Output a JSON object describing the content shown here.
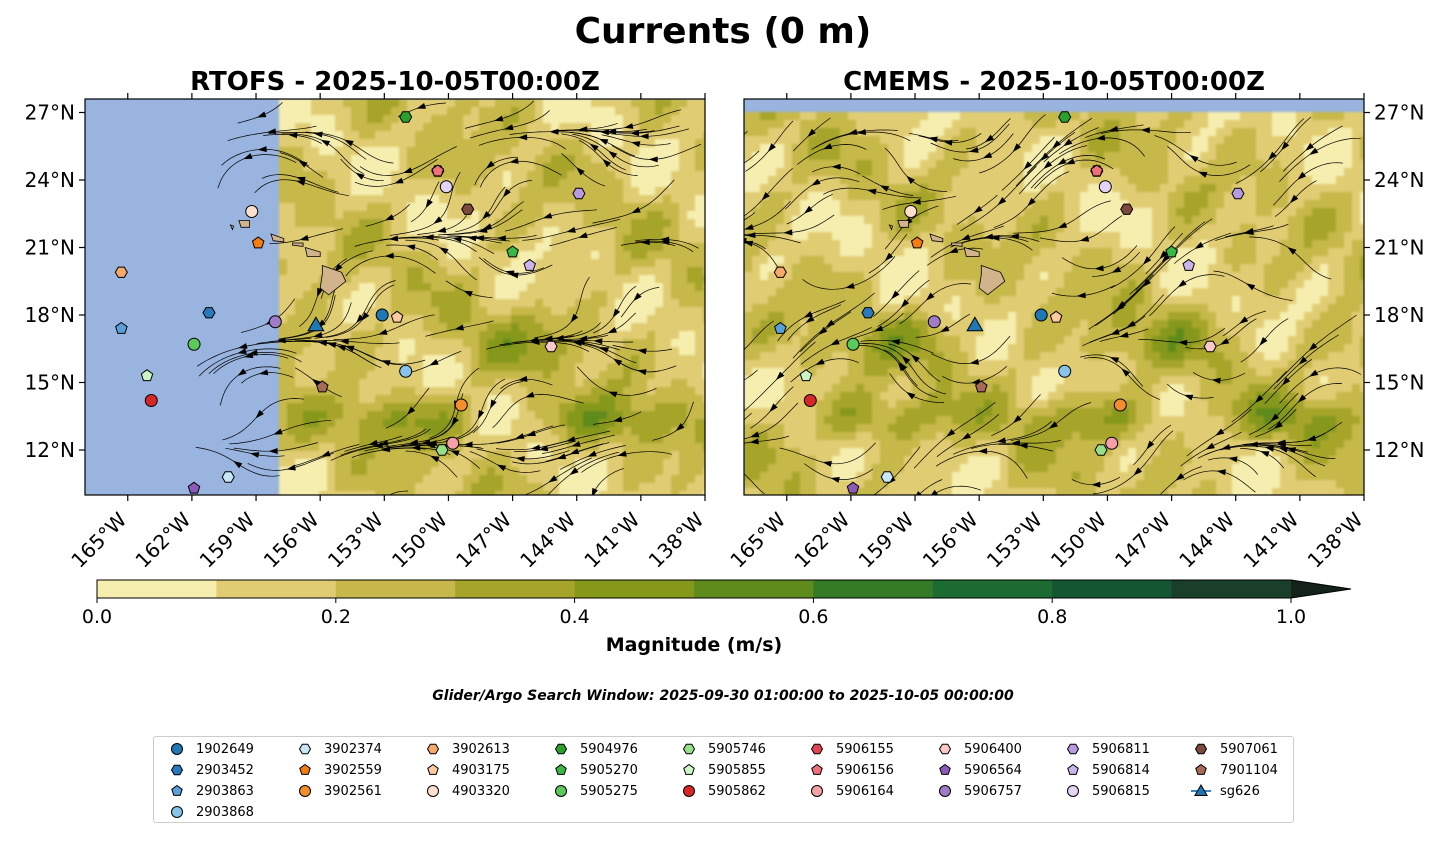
{
  "figure": {
    "suptitle": "Currents (0 m)",
    "search_window": "Glider/Argo Search Window: 2025-09-30 01:00:00 to 2025-10-05 00:00:00"
  },
  "chart_data": {
    "type": "map-contour",
    "panels": [
      {
        "title": "RTOFS - 2025-10-05T00:00Z",
        "lon_range": [
          -167,
          -138
        ],
        "lat_range": [
          10,
          27.6
        ],
        "ytick_side": "left"
      },
      {
        "title": "CMEMS - 2025-10-05T00:00Z",
        "lon_range": [
          -167,
          -138
        ],
        "lat_range": [
          10,
          27.6
        ],
        "ytick_side": "right"
      }
    ],
    "xticks": [
      -165,
      -162,
      -159,
      -156,
      -153,
      -150,
      -147,
      -144,
      -141,
      -138
    ],
    "xtick_labels": [
      "165°W",
      "162°W",
      "159°W",
      "156°W",
      "153°W",
      "150°W",
      "147°W",
      "144°W",
      "141°W",
      "138°W"
    ],
    "yticks": [
      12,
      15,
      18,
      21,
      24,
      27
    ],
    "ytick_labels": [
      "12°N",
      "15°N",
      "18°N",
      "21°N",
      "24°N",
      "27°N"
    ],
    "colorbar": {
      "label": "Magnitude (m/s)",
      "levels": [
        0.0,
        0.1,
        0.2,
        0.3,
        0.4,
        0.5,
        0.6,
        0.7,
        0.8,
        0.9,
        1.0
      ],
      "colors": [
        "#f6eeaf",
        "#e0cc72",
        "#c6b84a",
        "#a6a52a",
        "#86981a",
        "#5f8a1c",
        "#357a25",
        "#1c6b32",
        "#145632",
        "#193f2a"
      ],
      "extend_color": "#15221a",
      "tick_values": [
        0.0,
        0.2,
        0.4,
        0.6,
        0.8,
        1.0
      ],
      "tick_labels": [
        "0.0",
        "0.2",
        "0.4",
        "0.6",
        "0.8",
        "1.0"
      ]
    },
    "platforms": [
      {
        "id": "1902649",
        "marker": "circle",
        "color": "#1f77b4",
        "rtofs": [
          -153.1,
          18.0
        ],
        "cmems": [
          -153.1,
          18.0
        ]
      },
      {
        "id": "2903452",
        "marker": "hexagon",
        "color": "#2a79bd",
        "rtofs": [
          -161.2,
          18.1
        ],
        "cmems": [
          -161.2,
          18.1
        ]
      },
      {
        "id": "2903863",
        "marker": "pentagon",
        "color": "#5aa0d8",
        "rtofs": [
          -165.3,
          17.4
        ],
        "cmems": [
          -165.3,
          17.4
        ]
      },
      {
        "id": "2903868",
        "marker": "circle",
        "color": "#87c3ea",
        "rtofs": [
          -152.0,
          15.5
        ],
        "cmems": [
          -152.0,
          15.5
        ]
      },
      {
        "id": "3902374",
        "marker": "hexagon",
        "color": "#c8e6f5",
        "rtofs": [
          -160.3,
          10.8
        ],
        "cmems": [
          -160.3,
          10.8
        ]
      },
      {
        "id": "3902559",
        "marker": "pentagon",
        "color": "#f57c10",
        "rtofs": [
          -158.9,
          21.2
        ],
        "cmems": [
          -158.9,
          21.2
        ]
      },
      {
        "id": "3902561",
        "marker": "circle",
        "color": "#f28e2b",
        "rtofs": [
          -149.4,
          14.0
        ],
        "cmems": [
          -149.4,
          14.0
        ]
      },
      {
        "id": "3902613",
        "marker": "hexagon",
        "color": "#f6a968",
        "rtofs": [
          -165.3,
          19.9
        ],
        "cmems": [
          -165.3,
          19.9
        ]
      },
      {
        "id": "4903175",
        "marker": "pentagon",
        "color": "#fcc9a0",
        "rtofs": [
          -152.4,
          17.9
        ],
        "cmems": [
          -152.4,
          17.9
        ]
      },
      {
        "id": "4903320",
        "marker": "circle",
        "color": "#fde0cc",
        "rtofs": [
          -159.2,
          22.6
        ],
        "cmems": [
          -159.2,
          22.6
        ]
      },
      {
        "id": "5904976",
        "marker": "hexagon",
        "color": "#2ca02c",
        "rtofs": [
          -152.0,
          26.8
        ],
        "cmems": [
          -152.0,
          26.8
        ]
      },
      {
        "id": "5905270",
        "marker": "pentagon",
        "color": "#39b845",
        "rtofs": [
          -147.0,
          20.8
        ],
        "cmems": [
          -147.0,
          20.8
        ]
      },
      {
        "id": "5905275",
        "marker": "circle",
        "color": "#5ac85a",
        "rtofs": [
          -161.9,
          16.7
        ],
        "cmems": [
          -161.9,
          16.7
        ]
      },
      {
        "id": "5905746",
        "marker": "hexagon",
        "color": "#98df8a",
        "rtofs": [
          -150.3,
          12.0
        ],
        "cmems": [
          -150.3,
          12.0
        ]
      },
      {
        "id": "5905855",
        "marker": "pentagon",
        "color": "#ccf5c5",
        "rtofs": [
          -164.1,
          15.3
        ],
        "cmems": [
          -164.1,
          15.3
        ]
      },
      {
        "id": "5905862",
        "marker": "circle",
        "color": "#d62728",
        "rtofs": [
          -163.9,
          14.2
        ],
        "cmems": [
          -163.9,
          14.2
        ]
      },
      {
        "id": "5906155",
        "marker": "hexagon",
        "color": "#e04555",
        "rtofs": [
          -150.5,
          24.4
        ],
        "cmems": [
          -150.5,
          24.4
        ]
      },
      {
        "id": "5906156",
        "marker": "pentagon",
        "color": "#f0707a",
        "rtofs": [
          -150.5,
          24.4
        ],
        "cmems": [
          -150.5,
          24.4
        ]
      },
      {
        "id": "5906164",
        "marker": "circle",
        "color": "#f4a0a8",
        "rtofs": [
          -149.8,
          12.3
        ],
        "cmems": [
          -149.8,
          12.3
        ]
      },
      {
        "id": "5906400",
        "marker": "hexagon",
        "color": "#f9c9c8",
        "rtofs": [
          -145.2,
          16.6
        ],
        "cmems": [
          -145.2,
          16.6
        ]
      },
      {
        "id": "5906564",
        "marker": "pentagon",
        "color": "#8c5bb8",
        "rtofs": [
          -161.9,
          10.3
        ],
        "cmems": [
          -161.9,
          10.3
        ]
      },
      {
        "id": "5906757",
        "marker": "circle",
        "color": "#a07cc8",
        "rtofs": [
          -158.1,
          17.7
        ],
        "cmems": [
          -158.1,
          17.7
        ]
      },
      {
        "id": "5906811",
        "marker": "hexagon",
        "color": "#b79be0",
        "rtofs": [
          -143.9,
          23.4
        ],
        "cmems": [
          -143.9,
          23.4
        ]
      },
      {
        "id": "5906814",
        "marker": "pentagon",
        "color": "#cbb3ec",
        "rtofs": [
          -146.2,
          20.2
        ],
        "cmems": [
          -146.2,
          20.2
        ]
      },
      {
        "id": "5906815",
        "marker": "circle",
        "color": "#e3d3f5",
        "rtofs": [
          -150.1,
          23.7
        ],
        "cmems": [
          -150.1,
          23.7
        ]
      },
      {
        "id": "5907061",
        "marker": "hexagon",
        "color": "#7b4a3c",
        "rtofs": [
          -149.1,
          22.7
        ],
        "cmems": [
          -149.1,
          22.7
        ]
      },
      {
        "id": "7901104",
        "marker": "pentagon",
        "color": "#a66a57",
        "rtofs": [
          -155.9,
          14.8
        ],
        "cmems": [
          -155.9,
          14.8
        ]
      },
      {
        "id": "sg626",
        "marker": "triangle",
        "color": "#1f77b4",
        "rtofs": [
          -156.2,
          17.5
        ],
        "cmems": [
          -156.2,
          17.5
        ]
      }
    ],
    "colors": {
      "no_data": "#98b4df",
      "land": "#d2b48c"
    }
  }
}
